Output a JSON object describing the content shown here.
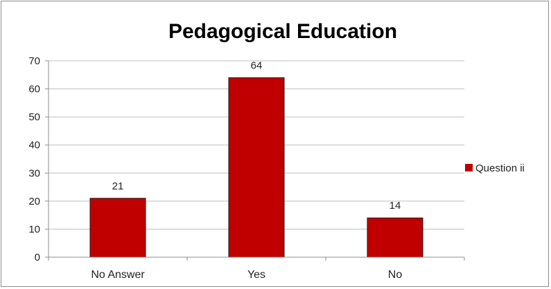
{
  "chart_data": {
    "type": "bar",
    "title": "Pedagogical Education",
    "categories": [
      "No Answer",
      "Yes",
      "No"
    ],
    "series": [
      {
        "name": "Question ii",
        "values": [
          21,
          64,
          14
        ],
        "color": "#c00000"
      }
    ],
    "ylim": [
      0,
      70
    ],
    "yticks": [
      "0",
      "10",
      "20",
      "30",
      "40",
      "50",
      "60",
      "70"
    ],
    "data_labels": [
      "21",
      "64",
      "14"
    ],
    "grid": true,
    "legend_position": "right"
  }
}
